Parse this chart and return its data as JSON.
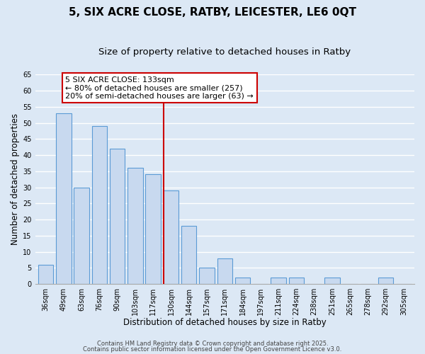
{
  "title": "5, SIX ACRE CLOSE, RATBY, LEICESTER, LE6 0QT",
  "subtitle": "Size of property relative to detached houses in Ratby",
  "xlabel": "Distribution of detached houses by size in Ratby",
  "ylabel": "Number of detached properties",
  "bar_labels": [
    "36sqm",
    "49sqm",
    "63sqm",
    "76sqm",
    "90sqm",
    "103sqm",
    "117sqm",
    "130sqm",
    "144sqm",
    "157sqm",
    "171sqm",
    "184sqm",
    "197sqm",
    "211sqm",
    "224sqm",
    "238sqm",
    "251sqm",
    "265sqm",
    "278sqm",
    "292sqm",
    "305sqm"
  ],
  "bar_values": [
    6,
    53,
    30,
    49,
    42,
    36,
    34,
    29,
    18,
    5,
    8,
    2,
    0,
    2,
    2,
    0,
    2,
    0,
    0,
    2,
    0
  ],
  "bar_color": "#c8d9ef",
  "bar_edge_color": "#5b9bd5",
  "vline_color": "#cc0000",
  "annotation_title": "5 SIX ACRE CLOSE: 133sqm",
  "annotation_line1": "← 80% of detached houses are smaller (257)",
  "annotation_line2": "20% of semi-detached houses are larger (63) →",
  "annotation_box_edge": "#cc0000",
  "ylim": [
    0,
    65
  ],
  "yticks": [
    0,
    5,
    10,
    15,
    20,
    25,
    30,
    35,
    40,
    45,
    50,
    55,
    60,
    65
  ],
  "footer1": "Contains HM Land Registry data © Crown copyright and database right 2025.",
  "footer2": "Contains public sector information licensed under the Open Government Licence v3.0.",
  "bg_color": "#dce8f5",
  "plot_bg_color": "#dce8f5",
  "grid_color": "#ffffff",
  "title_fontsize": 11,
  "subtitle_fontsize": 9.5,
  "tick_fontsize": 7,
  "axis_label_fontsize": 8.5,
  "annotation_fontsize": 8,
  "footer_fontsize": 6
}
